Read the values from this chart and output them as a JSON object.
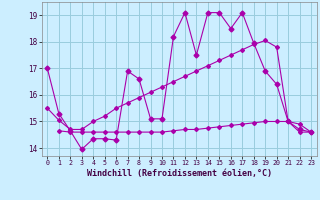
{
  "xlabel": "Windchill (Refroidissement éolien,°C)",
  "xlim": [
    -0.5,
    23.5
  ],
  "ylim": [
    13.7,
    19.5
  ],
  "yticks": [
    14,
    15,
    16,
    17,
    18,
    19
  ],
  "xticks": [
    0,
    1,
    2,
    3,
    4,
    5,
    6,
    7,
    8,
    9,
    10,
    11,
    12,
    13,
    14,
    15,
    16,
    17,
    18,
    19,
    20,
    21,
    22,
    23
  ],
  "bg_color": "#cceeff",
  "grid_color": "#99ccdd",
  "line_color": "#aa00aa",
  "line1_x": [
    0,
    1,
    2,
    3,
    4,
    5,
    6,
    7,
    8,
    9,
    10,
    11,
    12,
    13,
    14,
    15,
    16,
    17,
    18,
    19,
    20,
    21,
    22,
    23
  ],
  "line1_y": [
    17.0,
    15.3,
    14.65,
    13.95,
    14.35,
    14.35,
    14.3,
    16.9,
    16.6,
    15.1,
    15.1,
    18.2,
    19.1,
    17.5,
    19.1,
    19.1,
    18.5,
    19.1,
    17.95,
    16.9,
    16.4,
    15.0,
    14.7,
    14.6
  ],
  "line2_x": [
    0,
    1,
    2,
    3,
    4,
    5,
    6,
    7,
    8,
    9,
    10,
    11,
    12,
    13,
    14,
    15,
    16,
    17,
    18,
    19,
    20,
    21,
    22,
    23
  ],
  "line2_y": [
    15.5,
    15.05,
    14.7,
    14.7,
    15.0,
    15.2,
    15.5,
    15.7,
    15.9,
    16.1,
    16.3,
    16.5,
    16.7,
    16.9,
    17.1,
    17.3,
    17.5,
    17.7,
    17.9,
    18.05,
    17.8,
    15.0,
    14.6,
    14.6
  ],
  "line3_x": [
    1,
    2,
    3,
    4,
    5,
    6,
    7,
    8,
    9,
    10,
    11,
    12,
    13,
    14,
    15,
    16,
    17,
    18,
    19,
    20,
    21,
    22,
    23
  ],
  "line3_y": [
    14.65,
    14.6,
    14.6,
    14.6,
    14.6,
    14.6,
    14.6,
    14.6,
    14.6,
    14.6,
    14.65,
    14.7,
    14.7,
    14.75,
    14.8,
    14.85,
    14.9,
    14.95,
    15.0,
    15.0,
    15.0,
    14.9,
    14.6
  ]
}
